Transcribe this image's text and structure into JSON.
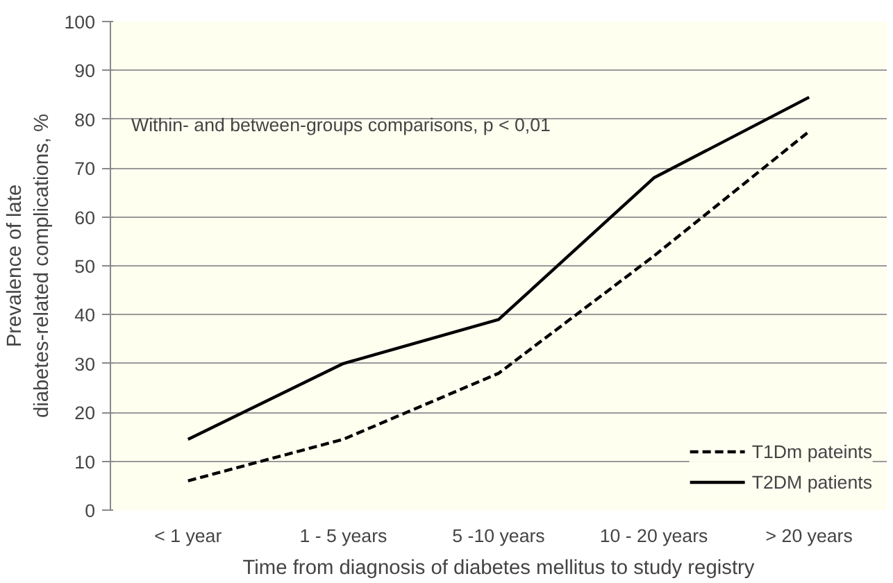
{
  "chart_data": {
    "type": "line",
    "categories": [
      "< 1 year",
      "1 - 5 years",
      "5 -10 years",
      "10 - 20 years",
      "> 20 years"
    ],
    "xlabel": "Time from diagnosis of diabetes mellitus to study registry",
    "ylabel": "Prevalence of late\ndiabetes-related complications, %",
    "ylim": [
      0,
      100
    ],
    "yticks": [
      0,
      10,
      20,
      30,
      40,
      50,
      60,
      70,
      80,
      90,
      100
    ],
    "grid": "y",
    "legend": "bottom right",
    "marker": "none",
    "annotations": [
      "Within- and between-groups comparisons, p < 0,01"
    ],
    "series": [
      {
        "name": "T1Dm pateints",
        "color": "#000000",
        "line_style": "dashed",
        "values": [
          6,
          14.5,
          28,
          52,
          77.5
        ]
      },
      {
        "name": "T2DM patients",
        "color": "#000000",
        "line_style": "solid",
        "values": [
          14.5,
          30,
          39,
          68,
          84.5
        ]
      }
    ]
  }
}
